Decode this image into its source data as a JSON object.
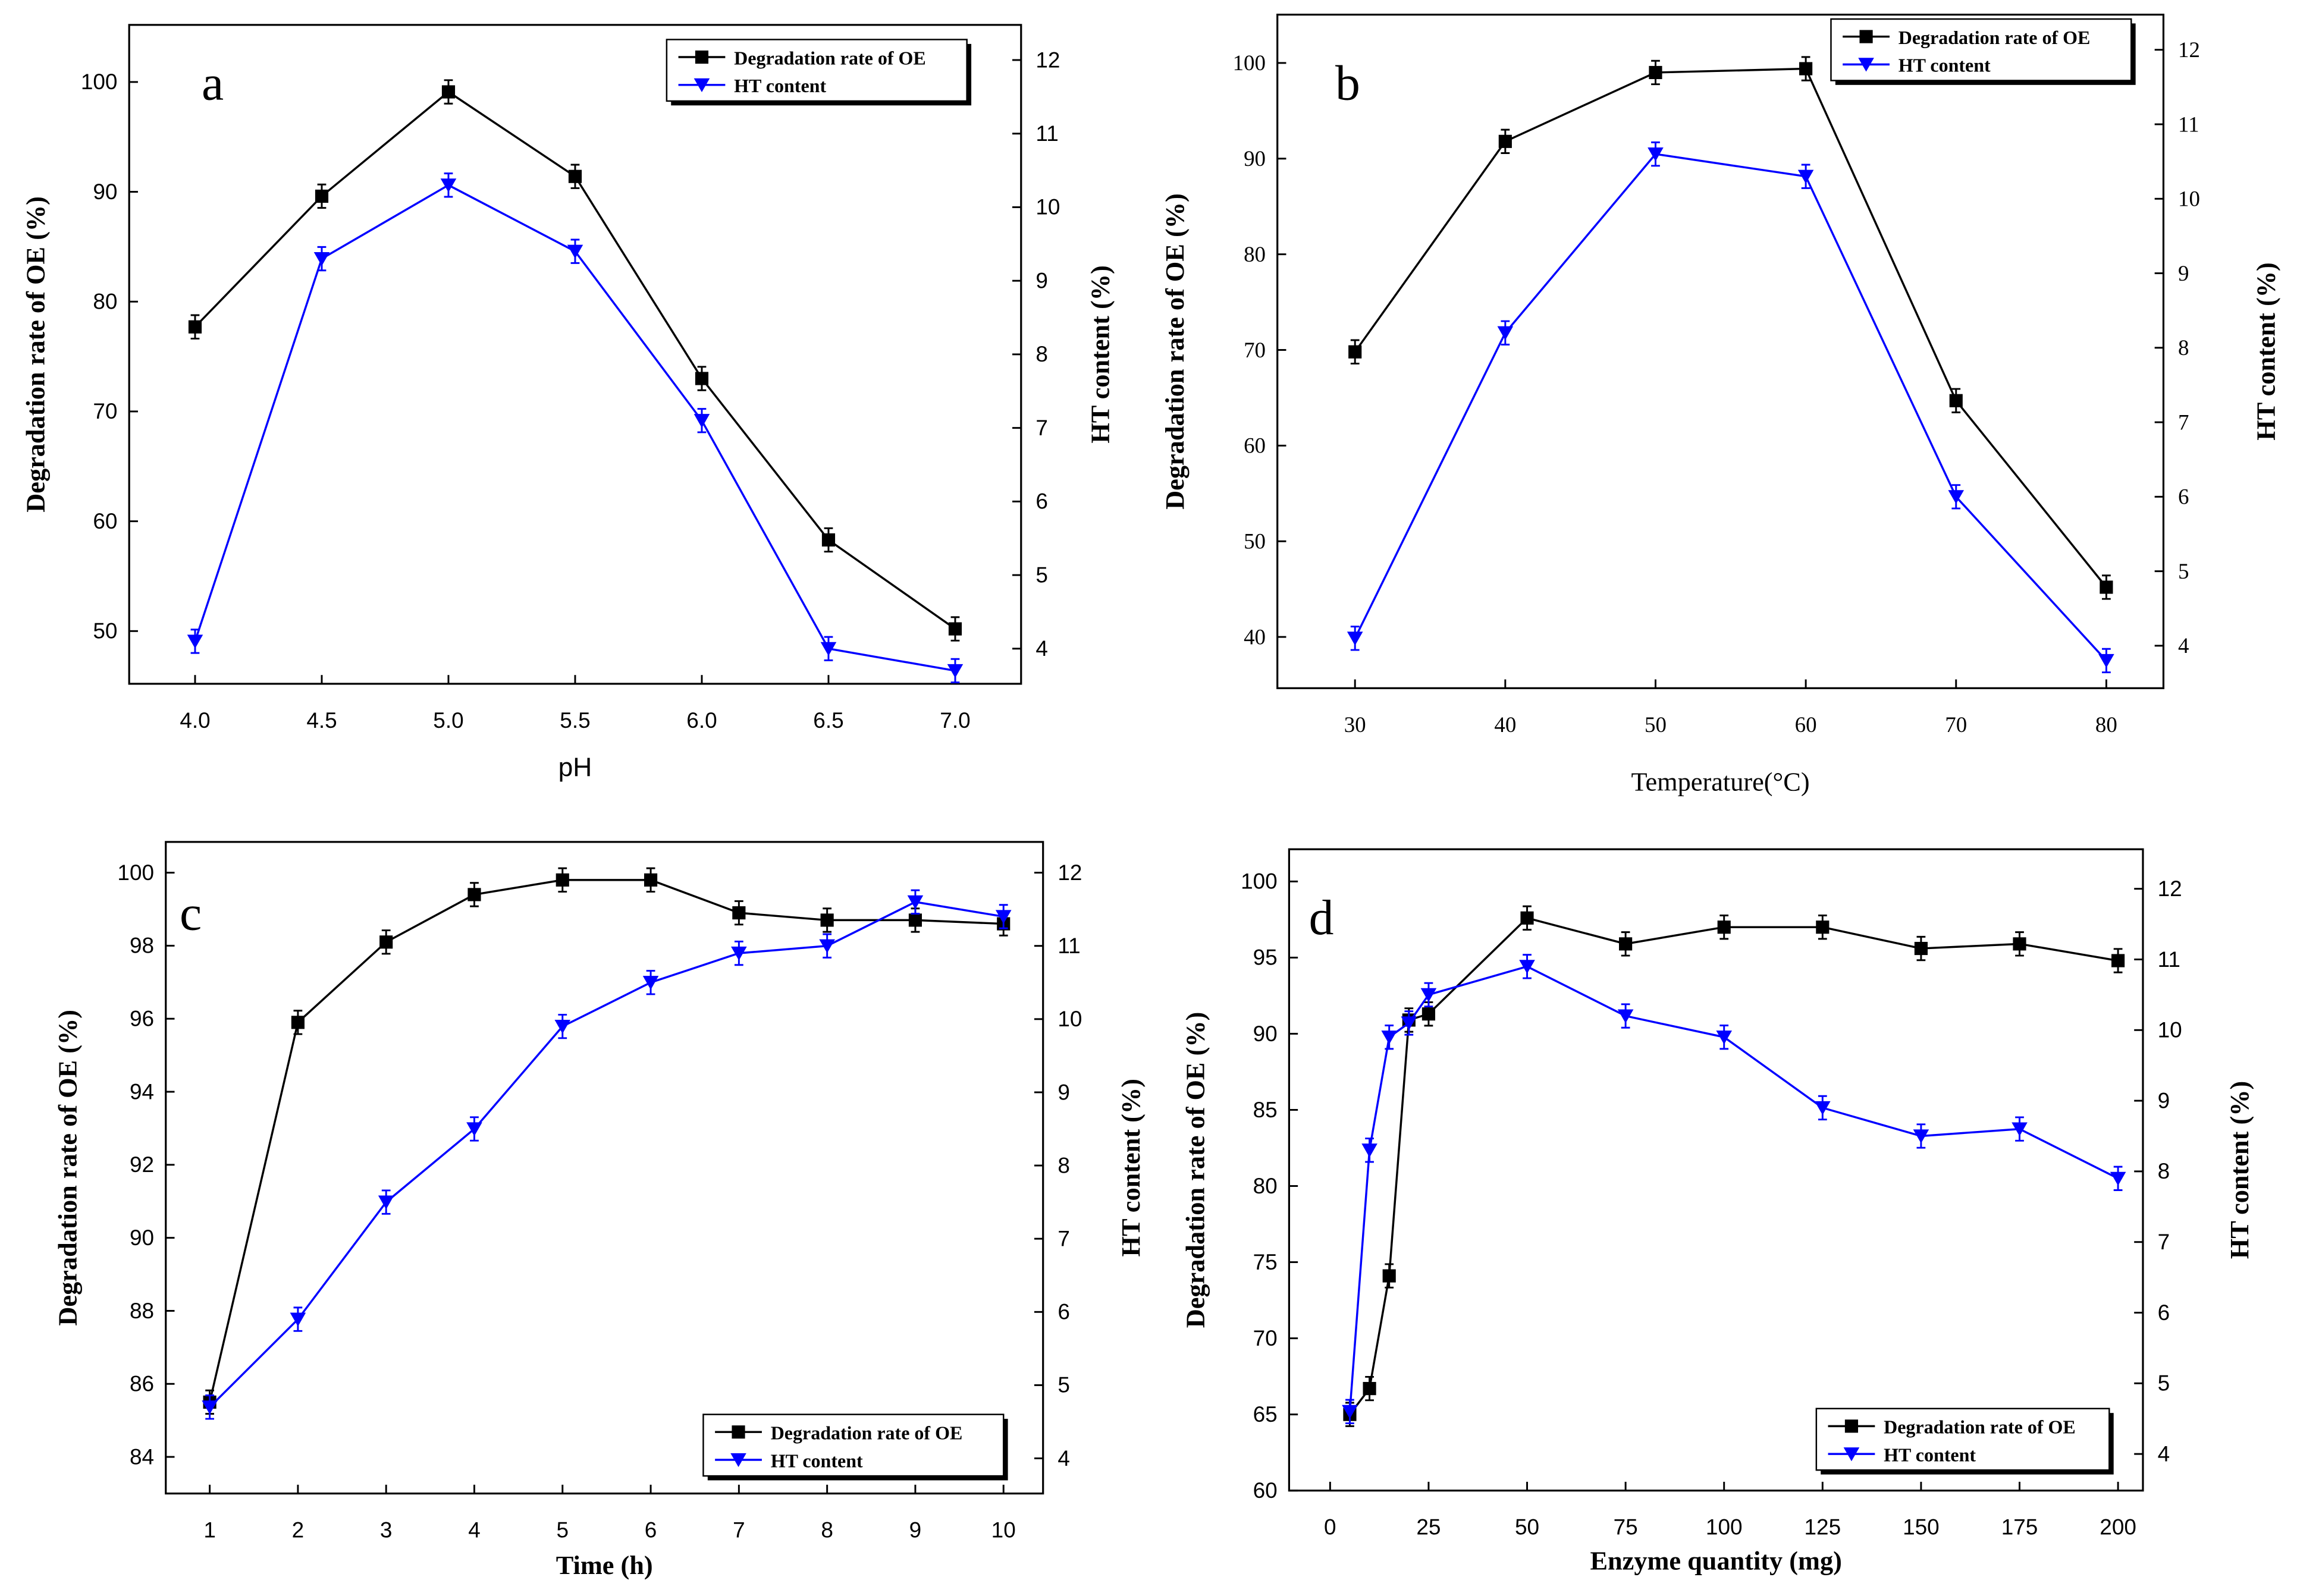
{
  "chart_data": [
    {
      "type": "line",
      "panel_label": "a",
      "xlabel": "pH",
      "ylabel": "Degradation rate of OE (%)",
      "y2label": "HT content (%)",
      "x": [
        4.0,
        4.5,
        5.0,
        5.5,
        6.0,
        6.5,
        7.0
      ],
      "xticks": [
        "4.0",
        "4.5",
        "5.0",
        "5.5",
        "6.0",
        "6.5",
        "7.0"
      ],
      "xtick_values": [
        4.0,
        4.5,
        5.0,
        5.5,
        6.0,
        6.5,
        7.0
      ],
      "yticks": [
        50,
        60,
        70,
        80,
        90,
        100
      ],
      "y2ticks": [
        4,
        5,
        6,
        7,
        8,
        9,
        10,
        11,
        12
      ],
      "series": [
        {
          "name": "Degradation rate of OE",
          "axis": "left",
          "color": "#000000",
          "marker": "square",
          "values": [
            77.7,
            89.6,
            99.1,
            91.4,
            73.0,
            58.3,
            50.2
          ]
        },
        {
          "name": "HT content",
          "axis": "right",
          "color": "#0000ff",
          "marker": "triangle-down",
          "values": [
            4.1,
            9.3,
            10.3,
            9.4,
            7.1,
            4.0,
            3.7
          ]
        }
      ],
      "legend": "top-right"
    },
    {
      "type": "line",
      "panel_label": "b",
      "xlabel": "Temperature(°C)",
      "ylabel": "Degradation rate of OE (%)",
      "y2label": "HT content (%)",
      "x": [
        30,
        40,
        50,
        60,
        70,
        80
      ],
      "xticks": [
        "30",
        "40",
        "50",
        "60",
        "70",
        "80"
      ],
      "xtick_values": [
        30,
        40,
        50,
        60,
        70,
        80
      ],
      "yticks": [
        40,
        50,
        60,
        70,
        80,
        90,
        100
      ],
      "y2ticks": [
        4,
        5,
        6,
        7,
        8,
        9,
        10,
        11,
        12
      ],
      "series": [
        {
          "name": "Degradation rate of OE",
          "axis": "left",
          "color": "#000000",
          "marker": "square",
          "values": [
            69.8,
            91.8,
            99.0,
            99.4,
            64.7,
            45.2
          ]
        },
        {
          "name": "HT content",
          "axis": "right",
          "color": "#0000ff",
          "marker": "triangle-down",
          "values": [
            4.1,
            8.2,
            10.6,
            10.3,
            6.0,
            3.8
          ]
        }
      ],
      "legend": "top-right"
    },
    {
      "type": "line",
      "panel_label": "c",
      "xlabel": "Time (h)",
      "ylabel": "Degradation rate of OE (%)",
      "y2label": "HT content (%)",
      "x": [
        1,
        2,
        3,
        4,
        5,
        6,
        7,
        8,
        9,
        10
      ],
      "xticks": [
        "1",
        "2",
        "3",
        "4",
        "5",
        "6",
        "7",
        "8",
        "9",
        "10"
      ],
      "xtick_values": [
        1,
        2,
        3,
        4,
        5,
        6,
        7,
        8,
        9,
        10
      ],
      "yticks": [
        84,
        86,
        88,
        90,
        92,
        94,
        96,
        98,
        100
      ],
      "y2ticks": [
        4,
        5,
        6,
        7,
        8,
        9,
        10,
        11,
        12
      ],
      "series": [
        {
          "name": "Degradation rate of OE",
          "axis": "left",
          "color": "#000000",
          "marker": "square",
          "values": [
            85.5,
            95.9,
            98.1,
            99.4,
            99.8,
            99.8,
            98.9,
            98.7,
            98.7,
            98.6
          ]
        },
        {
          "name": "HT content",
          "axis": "right",
          "color": "#0000ff",
          "marker": "triangle-down",
          "values": [
            4.7,
            5.9,
            7.5,
            8.5,
            9.9,
            10.5,
            10.9,
            11.0,
            11.6,
            11.4
          ]
        }
      ],
      "legend": "bottom-right"
    },
    {
      "type": "line",
      "panel_label": "d",
      "xlabel": "Enzyme quantity (mg)",
      "ylabel": "Degradation rate of OE (%)",
      "y2label": "HT content  (%)",
      "x": [
        5,
        10,
        15,
        20,
        25,
        50,
        75,
        100,
        125,
        150,
        175,
        200
      ],
      "xticks": [
        "0",
        "25",
        "50",
        "75",
        "100",
        "125",
        "150",
        "175",
        "200"
      ],
      "xtick_values": [
        0,
        25,
        50,
        75,
        100,
        125,
        150,
        175,
        200
      ],
      "yticks": [
        60,
        65,
        70,
        75,
        80,
        85,
        90,
        95,
        100
      ],
      "y2ticks": [
        4,
        5,
        6,
        7,
        8,
        9,
        10,
        11,
        12
      ],
      "series": [
        {
          "name": "Degradation rate of OE",
          "axis": "left",
          "color": "#000000",
          "marker": "square",
          "values": [
            65.0,
            66.7,
            74.1,
            90.9,
            91.3,
            97.6,
            95.9,
            97.0,
            97.0,
            95.6,
            95.9,
            94.8
          ]
        },
        {
          "name": "HT content",
          "axis": "right",
          "color": "#0000ff",
          "marker": "triangle-down",
          "values": [
            4.6,
            8.3,
            9.9,
            10.1,
            10.5,
            10.9,
            10.2,
            9.9,
            8.9,
            8.5,
            8.6,
            7.9
          ]
        }
      ],
      "legend": "bottom-right"
    }
  ]
}
